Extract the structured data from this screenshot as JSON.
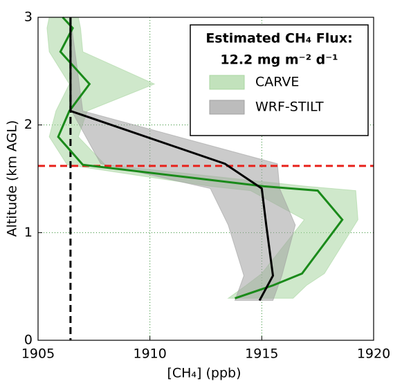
{
  "chart_data": {
    "type": "line",
    "xlabel": "[CH₄] (ppb)",
    "ylabel": "Altitude (km AGL)",
    "legend_title": "Estimated CH₄ Flux:",
    "legend_subtitle": "12.2 mg m⁻² d⁻¹",
    "legend_position": "upper right",
    "xlim": [
      1905,
      1920
    ],
    "ylim": [
      0,
      3
    ],
    "xticks": [
      1905,
      1910,
      1915,
      1920
    ],
    "yticks": [
      0,
      1,
      2,
      3
    ],
    "grid": true,
    "series": [
      {
        "name": "CARVE",
        "color": "#1a8a1a",
        "band_color": "#a8d5a0",
        "y": [
          3.0,
          2.9,
          2.68,
          2.38,
          2.13,
          1.89,
          1.63,
          1.43,
          1.39,
          1.12,
          0.62,
          0.51,
          0.39
        ],
        "x": [
          1906.1,
          1906.55,
          1906.0,
          1907.3,
          1906.4,
          1905.9,
          1907.0,
          1915.1,
          1917.5,
          1918.6,
          1916.8,
          1915.5,
          1913.8
        ],
        "lower": [
          1905.5,
          1905.4,
          1905.5,
          1906.4,
          1905.8,
          1905.5,
          1906.3,
          1912.7,
          1914.5,
          1916.9,
          1915.0,
          1914.3,
          1913.5
        ],
        "upper": [
          1906.8,
          1906.9,
          1907.0,
          1910.2,
          1907.2,
          1906.8,
          1908.0,
          1917.0,
          1919.2,
          1919.3,
          1917.8,
          1917.0,
          1916.4
        ]
      },
      {
        "name": "WRF-STILT",
        "color": "#000000",
        "band_color": "#a0a0a0",
        "y": [
          3.0,
          2.13,
          1.64,
          1.41,
          1.07,
          0.6,
          0.37
        ],
        "x": [
          1906.45,
          1906.45,
          1913.35,
          1915.0,
          1915.2,
          1915.5,
          1914.9
        ],
        "lower": [
          1906.45,
          1906.5,
          1907.8,
          1912.7,
          1913.5,
          1914.2,
          1913.8
        ],
        "upper": [
          1906.45,
          1907.0,
          1915.7,
          1915.8,
          1916.5,
          1915.9,
          1915.5
        ]
      }
    ],
    "hline": {
      "value": 1.62,
      "color": "#e8201a"
    },
    "vline": {
      "value": 1906.45,
      "color": "#000000"
    }
  }
}
